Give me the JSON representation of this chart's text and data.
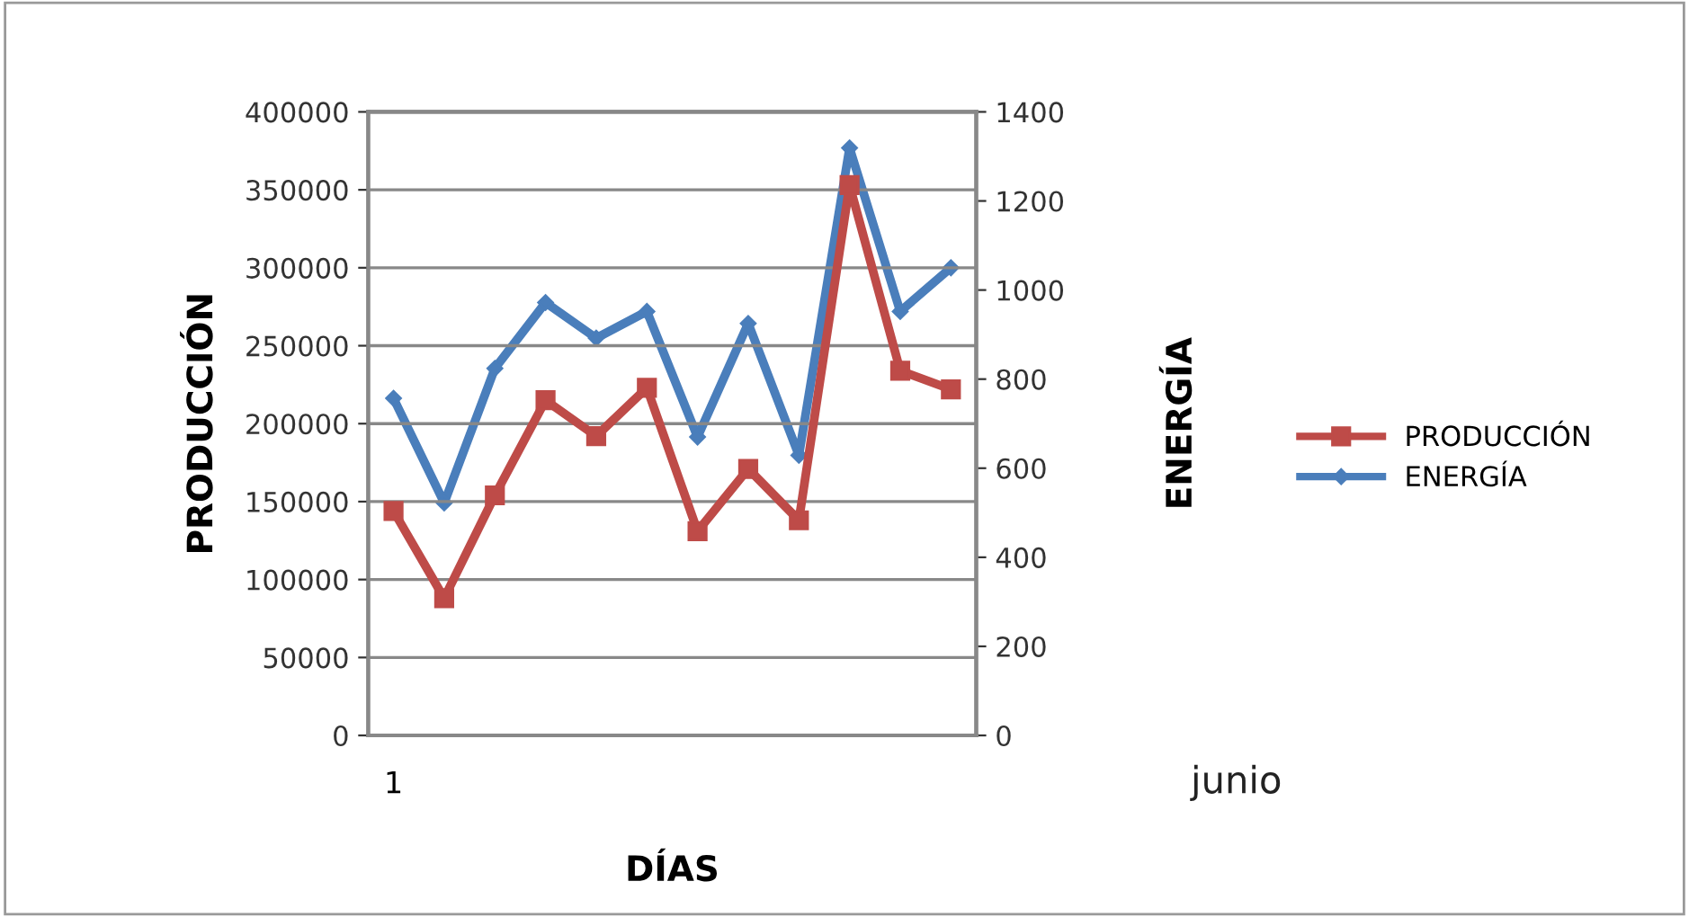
{
  "chart_data": {
    "type": "line",
    "xlabel": "DÍAS",
    "ylabel": "PRODUCCIÓN",
    "y2label": "ENERGÍA",
    "categories": [
      "1",
      null,
      null,
      null,
      null,
      null,
      null,
      null,
      null,
      null,
      null,
      null
    ],
    "series": [
      {
        "name": "PRODUCCIÓN",
        "color": "#be4b48",
        "marker": "square",
        "values": [
          144000,
          88000,
          154000,
          215000,
          192000,
          223000,
          131000,
          171000,
          138000,
          353000,
          234000,
          222000
        ]
      },
      {
        "name": "ENERGÍA",
        "color": "#4a7ebb",
        "marker": "diamond",
        "axis": "y2",
        "values": [
          757,
          522,
          824,
          972,
          892,
          952,
          670,
          925,
          629,
          1319,
          952,
          1050
        ]
      }
    ],
    "ylim": [
      0,
      400000
    ],
    "yticks": [
      0,
      50000,
      100000,
      150000,
      200000,
      250000,
      300000,
      350000,
      400000
    ],
    "y2lim": [
      0,
      1400
    ],
    "y2ticks": [
      0,
      200,
      400,
      600,
      800,
      1000,
      1200,
      1400
    ],
    "grid": "y",
    "legend": "right",
    "line_style": "solid",
    "annotations": [
      "junio"
    ]
  }
}
